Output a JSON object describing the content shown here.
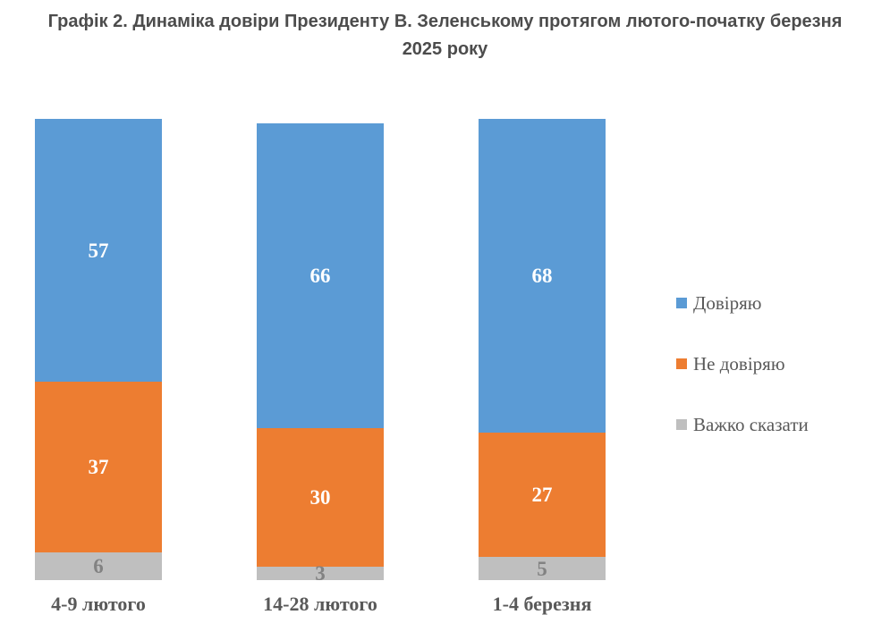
{
  "title": "Графік 2. Динаміка довіри Президенту В. Зеленському протягом лютого-початку березня\n2025 року",
  "chart_data": {
    "type": "bar",
    "subtype": "stacked-column",
    "title": "Графік 2. Динаміка довіри Президенту В. Зеленському протягом лютого-початку березня 2025 року",
    "categories": [
      "4-9 лютого",
      "14-28 лютого",
      "1-4 березня"
    ],
    "series": [
      {
        "name": "Довіряю",
        "color": "#5B9BD5",
        "label_color": "#ffffff",
        "values": [
          57,
          66,
          68
        ]
      },
      {
        "name": "Не довіряю",
        "color": "#ED7D31",
        "label_color": "#ffffff",
        "values": [
          37,
          30,
          27
        ]
      },
      {
        "name": "Важко сказати",
        "color": "#BFBFBF",
        "label_color": "#828282",
        "values": [
          6,
          3,
          5
        ]
      }
    ],
    "xlabel": "",
    "ylabel": "",
    "ylim": [
      0,
      100
    ],
    "grid": false,
    "axes_visible": false,
    "data_labels": true,
    "legend_position": "right"
  }
}
